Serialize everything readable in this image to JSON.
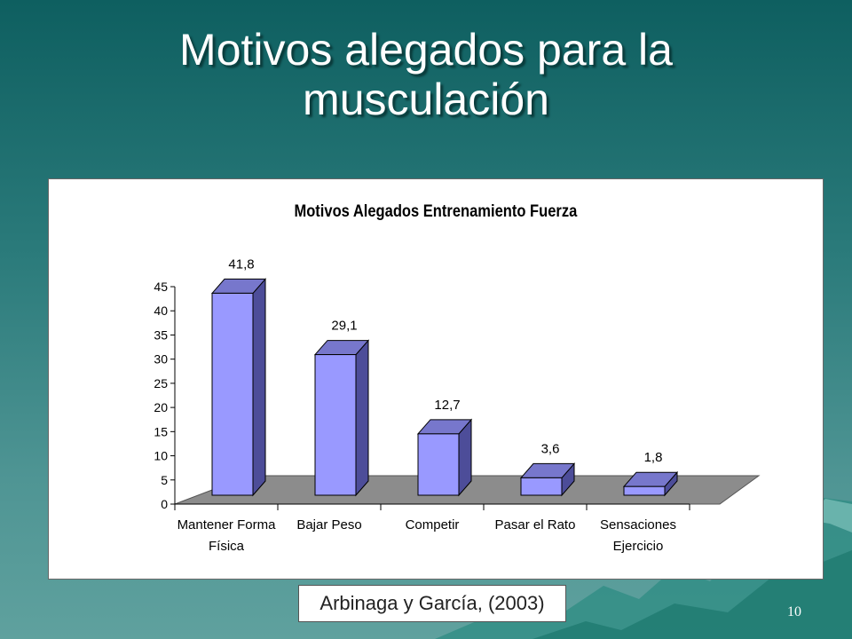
{
  "slide": {
    "title_line1": "Motivos alegados para la",
    "title_line2": "musculación",
    "citation": "Arbinaga y García, (2003)",
    "slide_number": "10"
  },
  "colors": {
    "background": "#2b7b7b",
    "bar_front": "#9999ff",
    "bar_side": "#4d4d99",
    "bar_top": "#7777cc",
    "floor": "#8c8c8c"
  },
  "chart_data": {
    "type": "bar",
    "title": "Motivos Alegados Entrenamiento Fuerza",
    "categories": [
      [
        "Mantener Forma",
        "Física"
      ],
      [
        "Bajar Peso"
      ],
      [
        "Competir"
      ],
      [
        "Pasar el Rato"
      ],
      [
        "Sensaciones",
        "Ejercicio"
      ]
    ],
    "values": [
      41.8,
      29.1,
      12.7,
      3.6,
      1.8
    ],
    "value_labels": [
      "41,8",
      "29,1",
      "12,7",
      "3,6",
      "1,8"
    ],
    "yticks": [
      "0",
      "5",
      "10",
      "15",
      "20",
      "25",
      "30",
      "35",
      "40",
      "45"
    ],
    "ylim": [
      0,
      45
    ],
    "grid": false,
    "legend": false,
    "style": "3d"
  }
}
